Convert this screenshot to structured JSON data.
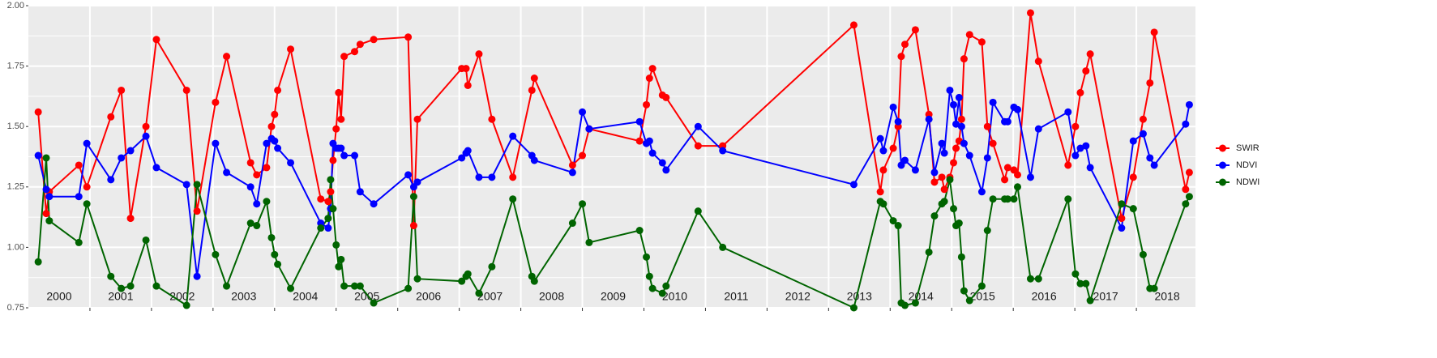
{
  "chart_data": {
    "type": "line",
    "x": [
      2000.16,
      2000.29,
      2000.34,
      2000.82,
      2000.95,
      2001.34,
      2001.51,
      2001.66,
      2001.91,
      2002.08,
      2002.57,
      2002.74,
      2003.04,
      2003.22,
      2003.61,
      2003.71,
      2003.87,
      2003.95,
      2004.0,
      2004.05,
      2004.26,
      2004.75,
      2004.87,
      2004.91,
      2004.95,
      2005.0,
      2005.04,
      2005.08,
      2005.13,
      2005.3,
      2005.39,
      2005.61,
      2006.17,
      2006.26,
      2006.32,
      2007.04,
      2007.11,
      2007.14,
      2007.32,
      2007.53,
      2007.87,
      2008.18,
      2008.22,
      2008.84,
      2009.0,
      2009.11,
      2009.93,
      2010.04,
      2010.09,
      2010.14,
      2010.3,
      2010.36,
      2010.88,
      2011.28,
      2013.41,
      2013.84,
      2013.89,
      2014.05,
      2014.13,
      2014.18,
      2014.24,
      2014.41,
      2014.63,
      2014.72,
      2014.84,
      2014.88,
      2014.97,
      2015.03,
      2015.07,
      2015.12,
      2015.16,
      2015.2,
      2015.29,
      2015.49,
      2015.58,
      2015.67,
      2015.86,
      2015.91,
      2016.01,
      2016.07,
      2016.28,
      2016.41,
      2016.89,
      2017.01,
      2017.09,
      2017.18,
      2017.25,
      2017.76,
      2017.95,
      2018.11,
      2018.22,
      2018.29,
      2018.8,
      2018.86
    ],
    "series": [
      {
        "name": "SWIR",
        "color": "#ff0000",
        "values": [
          1.56,
          1.14,
          1.23,
          1.34,
          1.25,
          1.54,
          1.65,
          1.12,
          1.5,
          1.86,
          1.65,
          1.15,
          1.6,
          1.79,
          1.35,
          1.3,
          1.33,
          1.5,
          1.55,
          1.65,
          1.82,
          1.2,
          1.19,
          1.23,
          1.36,
          1.49,
          1.64,
          1.53,
          1.79,
          1.81,
          1.84,
          1.86,
          1.87,
          1.09,
          1.53,
          1.74,
          1.74,
          1.67,
          1.8,
          1.53,
          1.29,
          1.65,
          1.7,
          1.34,
          1.38,
          1.49,
          1.44,
          1.59,
          1.7,
          1.74,
          1.63,
          1.62,
          1.42,
          1.42,
          1.92,
          1.23,
          1.32,
          1.41,
          1.5,
          1.79,
          1.84,
          1.9,
          1.55,
          1.27,
          1.29,
          1.24,
          1.29,
          1.35,
          1.41,
          1.44,
          1.53,
          1.78,
          1.88,
          1.85,
          1.5,
          1.43,
          1.28,
          1.33,
          1.32,
          1.3,
          1.97,
          1.77,
          1.34,
          1.5,
          1.64,
          1.73,
          1.8,
          1.12,
          1.29,
          1.53,
          1.68,
          1.89,
          1.24,
          1.31
        ]
      },
      {
        "name": "NDVI",
        "color": "#0000ff",
        "values": [
          1.38,
          1.24,
          1.21,
          1.21,
          1.43,
          1.28,
          1.37,
          1.4,
          1.46,
          1.33,
          1.26,
          0.88,
          1.43,
          1.31,
          1.25,
          1.18,
          1.43,
          1.45,
          1.44,
          1.41,
          1.35,
          1.1,
          1.08,
          1.16,
          1.43,
          1.41,
          1.41,
          1.41,
          1.38,
          1.38,
          1.23,
          1.18,
          1.3,
          1.25,
          1.27,
          1.37,
          1.39,
          1.4,
          1.29,
          1.29,
          1.46,
          1.38,
          1.36,
          1.31,
          1.56,
          1.49,
          1.52,
          1.43,
          1.44,
          1.39,
          1.35,
          1.32,
          1.5,
          1.4,
          1.26,
          1.45,
          1.4,
          1.58,
          1.52,
          1.34,
          1.36,
          1.32,
          1.53,
          1.31,
          1.43,
          1.39,
          1.65,
          1.59,
          1.51,
          1.62,
          1.5,
          1.43,
          1.38,
          1.23,
          1.37,
          1.6,
          1.52,
          1.52,
          1.58,
          1.57,
          1.29,
          1.49,
          1.56,
          1.38,
          1.41,
          1.42,
          1.33,
          1.08,
          1.44,
          1.47,
          1.37,
          1.34,
          1.51,
          1.59
        ]
      },
      {
        "name": "NDWI",
        "color": "#006400",
        "values": [
          0.94,
          1.37,
          1.11,
          1.02,
          1.18,
          0.88,
          0.83,
          0.84,
          1.03,
          0.84,
          0.76,
          1.26,
          0.97,
          0.84,
          1.1,
          1.09,
          1.19,
          1.04,
          0.97,
          0.93,
          0.83,
          1.08,
          1.12,
          1.28,
          1.16,
          1.01,
          0.92,
          0.95,
          0.84,
          0.84,
          0.84,
          0.77,
          0.83,
          1.21,
          0.87,
          0.86,
          0.88,
          0.89,
          0.81,
          0.92,
          1.2,
          0.88,
          0.86,
          1.1,
          1.18,
          1.02,
          1.07,
          0.96,
          0.88,
          0.83,
          0.81,
          0.84,
          1.15,
          1.0,
          0.75,
          1.19,
          1.18,
          1.11,
          1.09,
          0.77,
          0.76,
          0.77,
          0.98,
          1.13,
          1.18,
          1.19,
          1.28,
          1.16,
          1.09,
          1.1,
          0.96,
          0.82,
          0.78,
          0.84,
          1.07,
          1.2,
          1.2,
          1.2,
          1.2,
          1.25,
          0.87,
          0.87,
          1.2,
          0.89,
          0.85,
          0.85,
          0.78,
          1.18,
          1.16,
          0.97,
          0.83,
          0.83,
          1.18,
          1.21
        ]
      }
    ],
    "xlim": [
      2000,
      2018.96
    ],
    "xticks": [
      2001,
      2002,
      2003,
      2004,
      2005,
      2006,
      2007,
      2008,
      2009,
      2010,
      2011,
      2012,
      2013,
      2014,
      2015,
      2016,
      2017,
      2018
    ],
    "x_labels": [
      {
        "value": 2000.5,
        "label": "2000"
      },
      {
        "value": 2001.5,
        "label": "2001"
      },
      {
        "value": 2002.5,
        "label": "2002"
      },
      {
        "value": 2003.5,
        "label": "2003"
      },
      {
        "value": 2004.5,
        "label": "2004"
      },
      {
        "value": 2005.5,
        "label": "2005"
      },
      {
        "value": 2006.5,
        "label": "2006"
      },
      {
        "value": 2007.5,
        "label": "2007"
      },
      {
        "value": 2008.5,
        "label": "2008"
      },
      {
        "value": 2009.5,
        "label": "2009"
      },
      {
        "value": 2010.5,
        "label": "2010"
      },
      {
        "value": 2011.5,
        "label": "2011"
      },
      {
        "value": 2012.5,
        "label": "2012"
      },
      {
        "value": 2013.5,
        "label": "2013"
      },
      {
        "value": 2014.5,
        "label": "2014"
      },
      {
        "value": 2015.5,
        "label": "2015"
      },
      {
        "value": 2016.5,
        "label": "2016"
      },
      {
        "value": 2017.5,
        "label": "2017"
      },
      {
        "value": 2018.5,
        "label": "2018"
      }
    ],
    "ylim": [
      0.75,
      2.0
    ],
    "yticks": [
      {
        "value": 0.75,
        "label": "0.75"
      },
      {
        "value": 1.0,
        "label": "1.00"
      },
      {
        "value": 1.25,
        "label": "1.25"
      },
      {
        "value": 1.5,
        "label": "1.50"
      },
      {
        "value": 1.75,
        "label": "1.75"
      },
      {
        "value": 2.0,
        "label": "2.00"
      }
    ],
    "grid": true
  }
}
